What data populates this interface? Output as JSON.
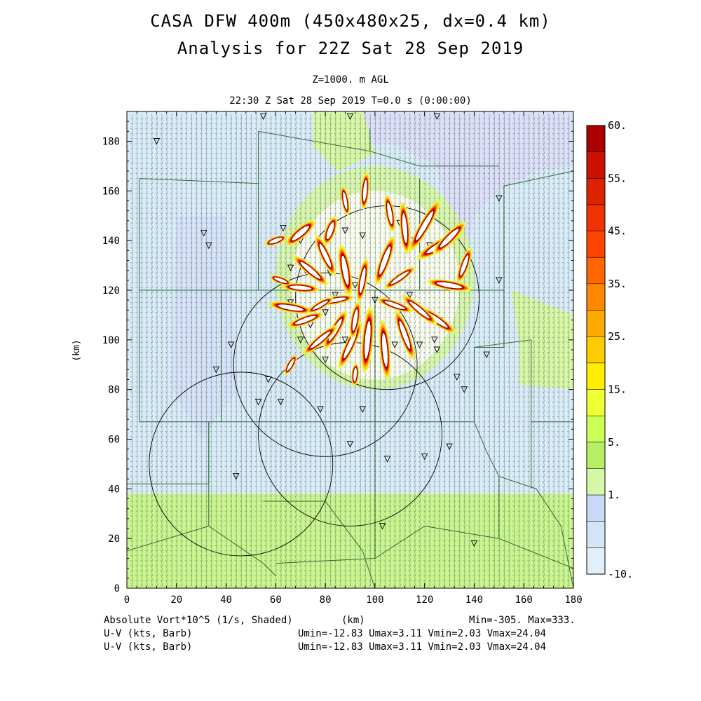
{
  "header": {
    "title_line1": "CASA DFW 400m (450x480x25, dx=0.4 km)",
    "title_line2": "Analysis for 22Z Sat 28 Sep 2019",
    "level": "Z=1000. m AGL",
    "valid_time": "22:30 Z Sat 28 Sep 2019    T=0.0 s (0:00:00)"
  },
  "footer": {
    "field_shaded": "Absolute Vort*10^5 (1/s, Shaded)",
    "xunit": "(km)",
    "minmax": "Min=-305. Max=333.",
    "barb1": "U-V (kts, Barb)",
    "barb1_stats": "Umin=-12.83 Umax=3.11 Vmin=2.03 Vmax=24.04",
    "barb2": "U-V (kts, Barb)",
    "barb2_stats": "Umin=-12.83 Umax=3.11 Vmin=2.03 Vmax=24.04"
  },
  "colorbar": {
    "labels": [
      "60.",
      "55.",
      "45.",
      "35.",
      "25.",
      "15.",
      "5.",
      "1.",
      "-10."
    ],
    "colors": [
      "#aa0000",
      "#cc1100",
      "#dd2200",
      "#ee3300",
      "#ff4400",
      "#ff6600",
      "#ff8800",
      "#ffaa00",
      "#ffcc00",
      "#ffee00",
      "#eeff33",
      "#ccff55",
      "#b8ee66",
      "#d6f7a6",
      "#ccd8f8",
      "#d4e4f4",
      "#e2eef8"
    ]
  },
  "colors": {
    "background_field": "#d8ecf8",
    "south_band": "#c9f590",
    "county_lines": "#2d6b3a",
    "radar_rings": "#000000"
  },
  "chart_data": {
    "type": "heatmap",
    "title": "Absolute Vort*10^5 (1/s, Shaded)",
    "xlabel": "(km)",
    "ylabel": "(km)",
    "xlim": [
      0,
      180
    ],
    "ylim": [
      0,
      192
    ],
    "xticks": [
      0,
      20,
      40,
      60,
      80,
      100,
      120,
      140,
      160,
      180
    ],
    "yticks": [
      0,
      20,
      40,
      60,
      80,
      100,
      120,
      140,
      160,
      180
    ],
    "color_levels": [
      -10,
      1,
      5,
      15,
      25,
      35,
      45,
      55,
      60
    ],
    "value_min": -305,
    "value_max": 333,
    "radar_rings": [
      {
        "cx": 105,
        "cy": 117,
        "r": 37
      },
      {
        "cx": 80,
        "cy": 90,
        "r": 37
      },
      {
        "cx": 90,
        "cy": 62,
        "r": 37
      },
      {
        "cx": 46,
        "cy": 50,
        "r": 37
      }
    ],
    "radar_sites": [
      [
        31,
        143
      ],
      [
        33,
        138
      ],
      [
        36,
        88
      ],
      [
        42,
        98
      ],
      [
        12,
        180
      ],
      [
        55,
        190
      ],
      [
        90,
        190
      ],
      [
        125,
        190
      ],
      [
        53,
        75
      ],
      [
        57,
        84
      ],
      [
        62,
        75
      ],
      [
        44,
        45
      ],
      [
        78,
        72
      ],
      [
        90,
        58
      ],
      [
        95,
        72
      ],
      [
        105,
        52
      ],
      [
        120,
        53
      ],
      [
        130,
        57
      ],
      [
        103,
        25
      ],
      [
        140,
        18
      ],
      [
        150,
        157
      ],
      [
        145,
        94
      ],
      [
        150,
        124
      ],
      [
        133,
        85
      ],
      [
        136,
        80
      ],
      [
        125,
        96
      ],
      [
        118,
        98
      ],
      [
        63,
        145
      ],
      [
        70,
        140
      ],
      [
        78,
        138
      ],
      [
        88,
        144
      ],
      [
        95,
        142
      ],
      [
        110,
        147
      ],
      [
        116,
        140
      ],
      [
        122,
        138
      ],
      [
        72,
        128
      ],
      [
        82,
        127
      ],
      [
        92,
        122
      ],
      [
        84,
        118
      ],
      [
        100,
        116
      ],
      [
        114,
        118
      ],
      [
        118,
        112
      ],
      [
        126,
        108
      ],
      [
        80,
        111
      ],
      [
        74,
        106
      ],
      [
        70,
        100
      ],
      [
        88,
        100
      ],
      [
        98,
        98
      ],
      [
        108,
        98
      ],
      [
        124,
        100
      ],
      [
        80,
        92
      ],
      [
        66,
        115
      ],
      [
        66,
        129
      ]
    ],
    "vorticity_cells": [
      {
        "x": 70,
        "y": 143,
        "len": 10,
        "ang": 40,
        "w": 3
      },
      {
        "x": 82,
        "y": 144,
        "len": 8,
        "ang": 70,
        "w": 2.8
      },
      {
        "x": 96,
        "y": 160,
        "len": 10,
        "ang": 85,
        "w": 2.2
      },
      {
        "x": 88,
        "y": 156,
        "len": 8,
        "ang": 100,
        "w": 2
      },
      {
        "x": 106,
        "y": 151,
        "len": 10,
        "ang": 100,
        "w": 2.4
      },
      {
        "x": 112,
        "y": 145,
        "len": 14,
        "ang": 95,
        "w": 2.6
      },
      {
        "x": 120,
        "y": 146,
        "len": 16,
        "ang": 60,
        "w": 2.8
      },
      {
        "x": 126,
        "y": 138,
        "len": 14,
        "ang": 30,
        "w": 3
      },
      {
        "x": 130,
        "y": 141,
        "len": 12,
        "ang": 45,
        "w": 2.8
      },
      {
        "x": 136,
        "y": 130,
        "len": 10,
        "ang": 70,
        "w": 2.4
      },
      {
        "x": 130,
        "y": 122,
        "len": 12,
        "ang": -10,
        "w": 2.6
      },
      {
        "x": 125,
        "y": 108,
        "len": 12,
        "ang": -35,
        "w": 2.6
      },
      {
        "x": 118,
        "y": 112,
        "len": 12,
        "ang": -40,
        "w": 2.4
      },
      {
        "x": 112,
        "y": 102,
        "len": 14,
        "ang": -70,
        "w": 2.6
      },
      {
        "x": 104,
        "y": 96,
        "len": 16,
        "ang": -85,
        "w": 2.8
      },
      {
        "x": 97,
        "y": 100,
        "len": 18,
        "ang": -95,
        "w": 3
      },
      {
        "x": 90,
        "y": 98,
        "len": 14,
        "ang": -115,
        "w": 2.6
      },
      {
        "x": 84,
        "y": 104,
        "len": 12,
        "ang": -120,
        "w": 2.6
      },
      {
        "x": 78,
        "y": 100,
        "len": 12,
        "ang": -140,
        "w": 2.4
      },
      {
        "x": 72,
        "y": 108,
        "len": 10,
        "ang": -160,
        "w": 2.4
      },
      {
        "x": 66,
        "y": 113,
        "len": 12,
        "ang": 170,
        "w": 2.6
      },
      {
        "x": 70,
        "y": 121,
        "len": 10,
        "ang": 175,
        "w": 2.4
      },
      {
        "x": 74,
        "y": 128,
        "len": 12,
        "ang": 140,
        "w": 2.6
      },
      {
        "x": 80,
        "y": 134,
        "len": 12,
        "ang": 115,
        "w": 2.6
      },
      {
        "x": 88,
        "y": 128,
        "len": 14,
        "ang": 100,
        "w": 3
      },
      {
        "x": 95,
        "y": 124,
        "len": 12,
        "ang": 80,
        "w": 2.4
      },
      {
        "x": 104,
        "y": 132,
        "len": 14,
        "ang": 70,
        "w": 2.8
      },
      {
        "x": 110,
        "y": 125,
        "len": 10,
        "ang": 35,
        "w": 2.2
      },
      {
        "x": 108,
        "y": 114,
        "len": 10,
        "ang": -20,
        "w": 2.2
      },
      {
        "x": 92,
        "y": 108,
        "len": 10,
        "ang": -100,
        "w": 2.4
      },
      {
        "x": 84,
        "y": 116,
        "len": 10,
        "ang": -170,
        "w": 2.2
      },
      {
        "x": 78,
        "y": 114,
        "len": 8,
        "ang": -150,
        "w": 2
      },
      {
        "x": 66,
        "y": 90,
        "len": 6,
        "ang": -120,
        "w": 2
      },
      {
        "x": 92,
        "y": 86,
        "len": 6,
        "ang": -95,
        "w": 2
      },
      {
        "x": 60,
        "y": 140,
        "len": 6,
        "ang": 20,
        "w": 2.2
      },
      {
        "x": 62,
        "y": 124,
        "len": 6,
        "ang": 160,
        "w": 2
      }
    ]
  }
}
